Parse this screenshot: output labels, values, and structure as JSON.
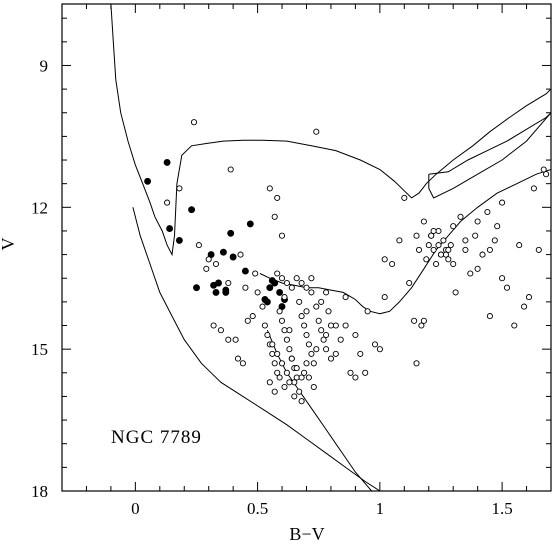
{
  "chart_data": {
    "type": "scatter",
    "title": "",
    "xlabel": "B−V",
    "ylabel": "V",
    "annotation": "NGC 7789",
    "xlim": [
      -0.3,
      1.7
    ],
    "ylim": [
      18,
      7.7
    ],
    "y_inverted": true,
    "x_ticks": [
      0,
      0.5,
      1,
      1.5
    ],
    "x_tick_labels": [
      "0",
      "0.5",
      "1",
      "1.5"
    ],
    "x_minor_step": 0.1,
    "y_ticks": [
      9,
      12,
      15,
      18
    ],
    "y_tick_labels": [
      "9",
      "12",
      "15",
      "18"
    ],
    "y_minor_step": 0.5,
    "grid": false,
    "legend": "none",
    "series": [
      {
        "marker": "filled-circle",
        "x": [
          0.05,
          0.13,
          0.14,
          0.18,
          0.23,
          0.25,
          0.31,
          0.32,
          0.33,
          0.34,
          0.36,
          0.37,
          0.37,
          0.39,
          0.4,
          0.45,
          0.47,
          0.53,
          0.54,
          0.55,
          0.56,
          0.57,
          0.59,
          0.61,
          0.6
        ],
        "y": [
          11.45,
          11.05,
          12.45,
          12.7,
          12.05,
          13.7,
          13.0,
          13.65,
          13.8,
          13.6,
          12.95,
          13.75,
          13.8,
          12.55,
          13.05,
          13.35,
          12.35,
          13.95,
          14.0,
          13.7,
          13.55,
          13.6,
          13.8,
          13.95,
          14.1
        ]
      },
      {
        "marker": "open-circle",
        "x": [
          0.13,
          0.18,
          0.24,
          0.26,
          0.29,
          0.3,
          0.32,
          0.33,
          0.38,
          0.39,
          0.41,
          0.43,
          0.44,
          0.46,
          0.49,
          0.55,
          0.57,
          0.58,
          0.6,
          0.61,
          0.63,
          0.65,
          0.68,
          0.7,
          0.72,
          0.74,
          0.76,
          0.78,
          0.8,
          0.82,
          0.84,
          0.86,
          0.88,
          0.9,
          0.92,
          0.95,
          0.98,
          1.0,
          1.02,
          1.05,
          1.08,
          1.1,
          1.12,
          1.14,
          1.15,
          1.16,
          1.17,
          1.18,
          1.19,
          1.2,
          1.21,
          1.22,
          1.23,
          1.24,
          1.25,
          1.26,
          1.27,
          1.28,
          1.29,
          1.3,
          1.31,
          1.33,
          1.35,
          1.37,
          1.39,
          1.4,
          1.42,
          1.44,
          1.45,
          1.47,
          1.48,
          1.5,
          1.52,
          1.55,
          1.57,
          1.59,
          1.61,
          1.63,
          1.65,
          1.67,
          1.68,
          0.35,
          0.38,
          0.42,
          0.45,
          0.48,
          0.5,
          0.52,
          0.53,
          0.54,
          0.55,
          0.56,
          0.57,
          0.58,
          0.59,
          0.6,
          0.61,
          0.62,
          0.63,
          0.64,
          0.65,
          0.66,
          0.67,
          0.68,
          0.69,
          0.7,
          0.71,
          0.72,
          0.73,
          0.74,
          0.75,
          0.76,
          0.77,
          0.78,
          0.79,
          0.8,
          0.55,
          0.57,
          0.59,
          0.61,
          0.63,
          0.65,
          0.67,
          0.69,
          0.71,
          0.73,
          0.58,
          0.6,
          0.62,
          0.64,
          0.66,
          0.68,
          0.7,
          0.72,
          0.56,
          0.58,
          0.6,
          0.62,
          0.64,
          0.66,
          0.68,
          0.7,
          0.74,
          0.78,
          0.82,
          0.86,
          0.9,
          0.94,
          1.02,
          1.15,
          1.18,
          1.21,
          1.24,
          1.27,
          1.3,
          1.22,
          1.25,
          1.28,
          1.35,
          1.4,
          1.45,
          1.5
        ],
        "y": [
          11.9,
          11.6,
          10.2,
          12.8,
          13.3,
          13.1,
          14.5,
          13.2,
          13.6,
          11.2,
          14.8,
          13.0,
          15.3,
          14.4,
          13.4,
          11.6,
          12.2,
          11.8,
          12.6,
          13.9,
          14.6,
          15.7,
          16.1,
          14.2,
          13.5,
          10.4,
          14.0,
          13.8,
          15.2,
          14.5,
          14.8,
          13.9,
          15.5,
          14.7,
          15.1,
          14.2,
          14.9,
          15.0,
          13.9,
          13.2,
          12.7,
          11.8,
          13.6,
          14.4,
          12.6,
          12.9,
          14.5,
          12.3,
          13.1,
          12.8,
          12.6,
          12.9,
          13.2,
          12.5,
          13.0,
          12.7,
          12.9,
          13.1,
          12.8,
          12.4,
          13.8,
          12.2,
          12.9,
          13.4,
          12.6,
          12.3,
          13.0,
          12.1,
          14.3,
          12.7,
          12.4,
          11.9,
          13.7,
          14.5,
          12.8,
          14.1,
          13.9,
          11.6,
          12.9,
          11.2,
          11.3,
          14.6,
          14.8,
          15.2,
          13.7,
          14.3,
          13.8,
          14.1,
          14.5,
          14.7,
          14.9,
          15.1,
          15.3,
          15.5,
          14.2,
          14.4,
          14.6,
          14.8,
          15.0,
          15.2,
          15.4,
          15.6,
          14.0,
          14.3,
          14.5,
          14.7,
          14.9,
          15.1,
          15.3,
          14.1,
          14.4,
          14.6,
          14.8,
          15.0,
          14.2,
          14.5,
          15.7,
          15.9,
          15.6,
          15.8,
          15.7,
          16.0,
          15.9,
          15.5,
          15.6,
          15.8,
          13.4,
          13.5,
          13.6,
          13.7,
          13.5,
          13.6,
          13.7,
          13.8,
          14.9,
          15.1,
          15.3,
          15.5,
          15.2,
          15.4,
          15.6,
          15.3,
          15.0,
          14.7,
          15.1,
          14.5,
          15.6,
          15.5,
          13.1,
          15.3,
          14.4,
          12.6,
          12.8,
          13.0,
          13.2,
          12.5,
          13.0,
          12.9,
          12.7,
          13.3,
          12.9,
          13.5
        ]
      }
    ],
    "isochrones": [
      {
        "x": [
          -0.1,
          -0.09,
          -0.08,
          -0.06,
          -0.03,
          0.0,
          0.03,
          0.06,
          0.08,
          0.11,
          0.13,
          0.15,
          0.16,
          0.17,
          0.19,
          0.23,
          0.29,
          0.36,
          0.44,
          0.52,
          0.62,
          0.72,
          0.82,
          0.92,
          1.0,
          1.06,
          1.1,
          1.13,
          1.16,
          1.19,
          1.23,
          1.3,
          1.38,
          1.45,
          1.53,
          1.6,
          1.68,
          1.7
        ],
        "y": [
          7.7,
          8.5,
          9.3,
          10.0,
          10.6,
          11.1,
          11.5,
          11.9,
          12.2,
          12.5,
          12.8,
          13.0,
          12.6,
          11.5,
          10.9,
          10.7,
          10.65,
          10.6,
          10.58,
          10.58,
          10.6,
          10.7,
          10.8,
          11.0,
          11.2,
          11.45,
          11.65,
          11.8,
          11.7,
          11.5,
          11.3,
          11.0,
          10.7,
          10.4,
          10.1,
          9.85,
          9.6,
          9.5
        ]
      },
      {
        "x": [
          1.2,
          1.28,
          1.36,
          1.44,
          1.52,
          1.6,
          1.68,
          1.7,
          1.6,
          1.5,
          1.4,
          1.3,
          1.22,
          1.2,
          1.2
        ],
        "y": [
          11.3,
          11.25,
          11.0,
          10.8,
          10.6,
          10.35,
          10.1,
          10.0,
          10.6,
          11.0,
          11.3,
          11.6,
          11.8,
          11.6,
          11.3
        ]
      },
      {
        "x": [
          -0.01,
          0.02,
          0.06,
          0.1,
          0.15,
          0.2,
          0.27,
          0.35,
          0.44,
          0.53,
          0.62,
          0.7,
          0.78,
          0.86,
          0.94,
          1.03,
          1.05
        ],
        "y": [
          12.0,
          12.6,
          13.2,
          13.8,
          14.3,
          14.8,
          15.3,
          15.7,
          16.0,
          16.3,
          16.6,
          16.9,
          17.2,
          17.5,
          17.8,
          18.1,
          18.2
        ]
      },
      {
        "x": [
          0.51,
          0.55,
          0.6,
          0.65,
          0.7,
          0.75,
          0.8,
          0.85,
          0.9,
          0.93,
          0.96,
          1.0,
          1.04,
          1.08,
          1.13,
          1.18,
          1.23,
          1.28,
          1.33,
          1.4,
          1.48,
          1.56,
          1.64,
          1.7
        ],
        "y": [
          13.4,
          13.5,
          13.6,
          13.65,
          13.7,
          13.7,
          13.75,
          13.8,
          13.95,
          14.1,
          14.2,
          14.25,
          14.2,
          14.0,
          13.7,
          13.3,
          12.9,
          12.6,
          12.3,
          12.0,
          11.7,
          11.5,
          11.3,
          11.2
        ]
      },
      {
        "x": [
          0.54,
          0.58,
          0.62,
          0.66,
          0.7,
          0.74,
          0.78,
          0.82,
          0.86,
          0.9,
          0.95,
          1.0,
          1.05
        ],
        "y": [
          14.6,
          15.1,
          15.5,
          15.8,
          16.1,
          16.4,
          16.7,
          17.0,
          17.3,
          17.6,
          17.9,
          18.2,
          18.5
        ]
      }
    ]
  }
}
